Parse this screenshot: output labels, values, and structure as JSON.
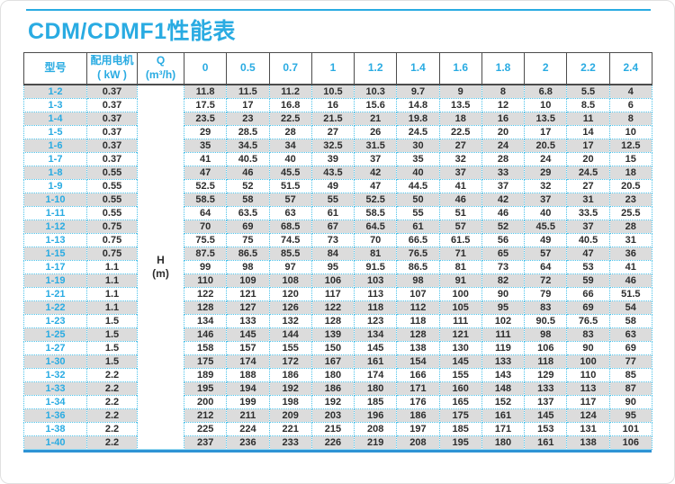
{
  "page": {
    "title": "CDM/CDMF1性能表"
  },
  "colors": {
    "accent": "#29abe2",
    "dotted_grid": "#4cc2ea",
    "row_stripe": "#dcdcdc",
    "header_border": "#4c4c4c",
    "bottom_rule": "#2e93d5"
  },
  "table": {
    "headers": {
      "model": "型号",
      "motor_line1": "配用电机",
      "motor_line2": "( kW )",
      "q_line1": "Q",
      "q_line2": "(m³/h)"
    },
    "flow_columns": [
      "0",
      "0.5",
      "0.7",
      "1",
      "1.2",
      "1.4",
      "1.6",
      "1.8",
      "2",
      "2.2",
      "2.4"
    ],
    "head_unit": {
      "line1": "H",
      "line2": "(m)"
    },
    "rows": [
      {
        "model": "1-2",
        "motor_kw": "0.37",
        "values": [
          11.8,
          11.5,
          11.2,
          10.5,
          10.3,
          9.7,
          9,
          8,
          6.8,
          5.5,
          4
        ]
      },
      {
        "model": "1-3",
        "motor_kw": "0.37",
        "values": [
          17.5,
          17,
          16.8,
          16,
          15.6,
          14.8,
          13.5,
          12,
          10,
          8.5,
          6
        ]
      },
      {
        "model": "1-4",
        "motor_kw": "0.37",
        "values": [
          23.5,
          23,
          22.5,
          21.5,
          21,
          19.8,
          18,
          16,
          13.5,
          11,
          8
        ]
      },
      {
        "model": "1-5",
        "motor_kw": "0.37",
        "values": [
          29,
          28.5,
          28,
          27,
          26,
          24.5,
          22.5,
          20,
          17,
          14,
          10
        ]
      },
      {
        "model": "1-6",
        "motor_kw": "0.37",
        "values": [
          35,
          34.5,
          34,
          32.5,
          31.5,
          30,
          27,
          24,
          20.5,
          17,
          12.5
        ]
      },
      {
        "model": "1-7",
        "motor_kw": "0.37",
        "values": [
          41,
          40.5,
          40,
          39,
          37,
          35,
          32,
          28,
          24,
          20,
          15
        ]
      },
      {
        "model": "1-8",
        "motor_kw": "0.55",
        "values": [
          47,
          46,
          45.5,
          43.5,
          42,
          40,
          37,
          33,
          29,
          24.5,
          18
        ]
      },
      {
        "model": "1-9",
        "motor_kw": "0.55",
        "values": [
          52.5,
          52,
          51.5,
          49,
          47,
          44.5,
          41,
          37,
          32,
          27,
          20.5
        ]
      },
      {
        "model": "1-10",
        "motor_kw": "0.55",
        "values": [
          58.5,
          58,
          57,
          55,
          52.5,
          50,
          46,
          42,
          37,
          31,
          23
        ]
      },
      {
        "model": "1-11",
        "motor_kw": "0.55",
        "values": [
          64,
          63.5,
          63,
          61,
          58.5,
          55,
          51,
          46,
          40,
          33.5,
          25.5
        ]
      },
      {
        "model": "1-12",
        "motor_kw": "0.75",
        "values": [
          70,
          69,
          68.5,
          67,
          64.5,
          61,
          57,
          52,
          45.5,
          37,
          28
        ]
      },
      {
        "model": "1-13",
        "motor_kw": "0.75",
        "values": [
          75.5,
          75,
          74.5,
          73,
          70,
          66.5,
          61.5,
          56,
          49,
          40.5,
          31
        ]
      },
      {
        "model": "1-15",
        "motor_kw": "0.75",
        "values": [
          87.5,
          86.5,
          85.5,
          84,
          81,
          76.5,
          71,
          65,
          57,
          47,
          36
        ]
      },
      {
        "model": "1-17",
        "motor_kw": "1.1",
        "values": [
          99,
          98,
          97,
          95,
          91.5,
          86.5,
          81,
          73,
          64,
          53,
          41
        ]
      },
      {
        "model": "1-19",
        "motor_kw": "1.1",
        "values": [
          110,
          109,
          108,
          106,
          103,
          98,
          91,
          82,
          72,
          59,
          46
        ]
      },
      {
        "model": "1-21",
        "motor_kw": "1.1",
        "values": [
          122,
          121,
          120,
          117,
          113,
          107,
          100,
          90,
          79,
          66,
          51.5
        ]
      },
      {
        "model": "1-22",
        "motor_kw": "1.1",
        "values": [
          128,
          127,
          126,
          122,
          118,
          112,
          105,
          95,
          83,
          69,
          54
        ]
      },
      {
        "model": "1-23",
        "motor_kw": "1.5",
        "values": [
          134,
          133,
          132,
          128,
          123,
          118,
          111,
          102,
          90.5,
          76.5,
          58
        ]
      },
      {
        "model": "1-25",
        "motor_kw": "1.5",
        "values": [
          146,
          145,
          144,
          139,
          134,
          128,
          121,
          111,
          98,
          83,
          63
        ]
      },
      {
        "model": "1-27",
        "motor_kw": "1.5",
        "values": [
          158,
          157,
          155,
          150,
          145,
          138,
          130,
          119,
          106,
          90,
          69
        ]
      },
      {
        "model": "1-30",
        "motor_kw": "1.5",
        "values": [
          175,
          174,
          172,
          167,
          161,
          154,
          145,
          133,
          118,
          100,
          77
        ]
      },
      {
        "model": "1-32",
        "motor_kw": "2.2",
        "values": [
          189,
          188,
          186,
          180,
          174,
          166,
          155,
          143,
          129,
          110,
          85
        ]
      },
      {
        "model": "1-33",
        "motor_kw": "2.2",
        "values": [
          195,
          194,
          192,
          186,
          180,
          171,
          160,
          148,
          133,
          113,
          87
        ]
      },
      {
        "model": "1-34",
        "motor_kw": "2.2",
        "values": [
          200,
          199,
          198,
          192,
          185,
          176,
          165,
          152,
          137,
          117,
          90
        ]
      },
      {
        "model": "1-36",
        "motor_kw": "2.2",
        "values": [
          212,
          211,
          209,
          203,
          196,
          186,
          175,
          161,
          145,
          124,
          95
        ]
      },
      {
        "model": "1-38",
        "motor_kw": "2.2",
        "values": [
          225,
          224,
          221,
          215,
          208,
          197,
          185,
          171,
          153,
          131,
          101
        ]
      },
      {
        "model": "1-40",
        "motor_kw": "2.2",
        "values": [
          237,
          236,
          233,
          226,
          219,
          208,
          195,
          180,
          161,
          138,
          106
        ]
      }
    ]
  }
}
